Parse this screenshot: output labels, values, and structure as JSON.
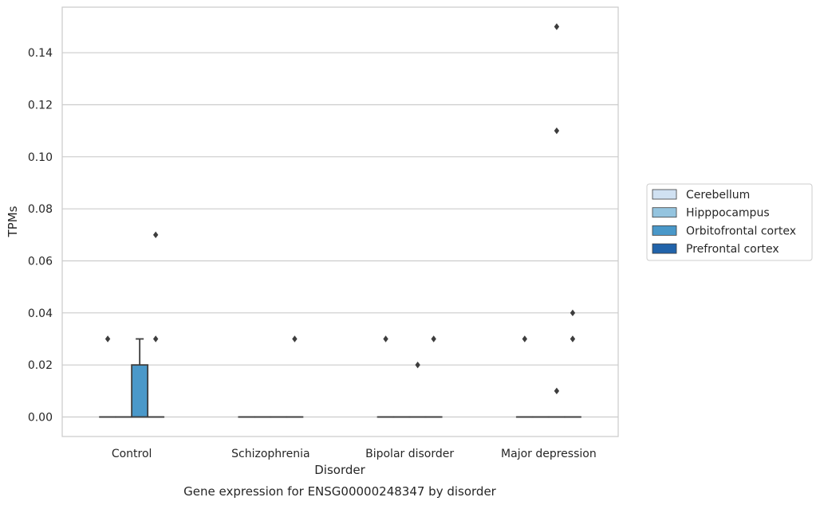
{
  "chart_data": {
    "type": "box",
    "xlabel": "Disorder",
    "ylabel": "TPMs",
    "caption": "Gene expression for ENSG00000248347 by disorder",
    "categories": [
      "Control",
      "Schizophrenia",
      "Bipolar disorder",
      "Major depression"
    ],
    "ylim": [
      -0.0075,
      0.1575
    ],
    "yticks": [
      0.0,
      0.02,
      0.04,
      0.06,
      0.08,
      0.1,
      0.12,
      0.14
    ],
    "ytick_labels": [
      "0.00",
      "0.02",
      "0.04",
      "0.06",
      "0.08",
      "0.10",
      "0.12",
      "0.14"
    ],
    "grid": "horizontal",
    "legend_position": "right, outside plot",
    "series": [
      {
        "name": "Cerebellum",
        "color": "#d0e1f2",
        "boxes": [
          {
            "q1": 0,
            "median": 0,
            "q3": 0,
            "whisker_low": 0,
            "whisker_high": 0,
            "outliers": [
              0.03
            ]
          },
          {
            "q1": 0,
            "median": 0,
            "q3": 0,
            "whisker_low": 0,
            "whisker_high": 0,
            "outliers": []
          },
          {
            "q1": 0,
            "median": 0,
            "q3": 0,
            "whisker_low": 0,
            "whisker_high": 0,
            "outliers": [
              0.03
            ]
          },
          {
            "q1": 0,
            "median": 0,
            "q3": 0,
            "whisker_low": 0,
            "whisker_high": 0,
            "outliers": [
              0.03
            ]
          }
        ]
      },
      {
        "name": "Hipppocampus",
        "color": "#94c4df",
        "boxes": [
          {
            "q1": 0,
            "median": 0,
            "q3": 0,
            "whisker_low": 0,
            "whisker_high": 0,
            "outliers": []
          },
          {
            "q1": 0,
            "median": 0,
            "q3": 0,
            "whisker_low": 0,
            "whisker_high": 0,
            "outliers": []
          },
          {
            "q1": 0,
            "median": 0,
            "q3": 0,
            "whisker_low": 0,
            "whisker_high": 0,
            "outliers": []
          },
          {
            "q1": 0,
            "median": 0,
            "q3": 0,
            "whisker_low": 0,
            "whisker_high": 0,
            "outliers": []
          }
        ]
      },
      {
        "name": "Orbitofrontal cortex",
        "color": "#4a98c9",
        "boxes": [
          {
            "q1": 0,
            "median": 0,
            "q3": 0.02,
            "whisker_low": 0,
            "whisker_high": 0.03,
            "outliers": []
          },
          {
            "q1": 0,
            "median": 0,
            "q3": 0,
            "whisker_low": 0,
            "whisker_high": 0,
            "outliers": []
          },
          {
            "q1": 0,
            "median": 0,
            "q3": 0,
            "whisker_low": 0,
            "whisker_high": 0,
            "outliers": [
              0.02
            ]
          },
          {
            "q1": 0,
            "median": 0,
            "q3": 0,
            "whisker_low": 0,
            "whisker_high": 0,
            "outliers": [
              0.15,
              0.11,
              0.01
            ]
          }
        ]
      },
      {
        "name": "Prefrontal cortex",
        "color": "#2163aa",
        "boxes": [
          {
            "q1": 0,
            "median": 0,
            "q3": 0,
            "whisker_low": 0,
            "whisker_high": 0,
            "outliers": [
              0.07,
              0.03
            ]
          },
          {
            "q1": 0,
            "median": 0,
            "q3": 0,
            "whisker_low": 0,
            "whisker_high": 0,
            "outliers": [
              0.03
            ]
          },
          {
            "q1": 0,
            "median": 0,
            "q3": 0,
            "whisker_low": 0,
            "whisker_high": 0,
            "outliers": [
              0.03
            ]
          },
          {
            "q1": 0,
            "median": 0,
            "q3": 0,
            "whisker_low": 0,
            "whisker_high": 0,
            "outliers": [
              0.04,
              0.03
            ]
          }
        ]
      }
    ]
  }
}
